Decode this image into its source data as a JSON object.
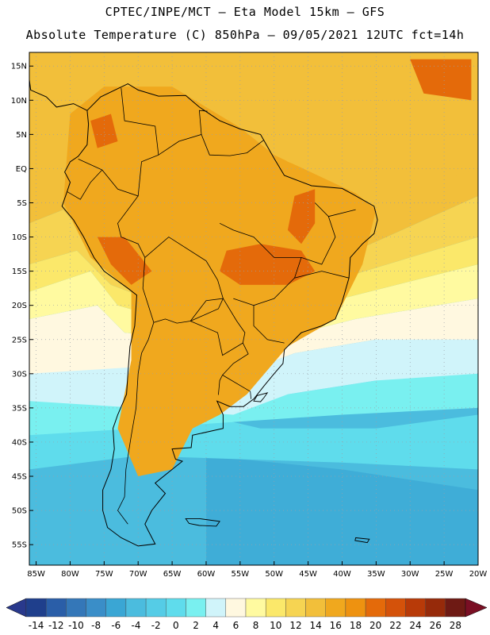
{
  "header": {
    "line1": "CPTEC/INPE/MCT –  Eta Model 15km – GFS",
    "line2": "Absolute Temperature (C) 850hPa – 09/05/2021 12UTC fct=14h"
  },
  "map": {
    "lon_range": [
      -86,
      -20
    ],
    "lat_range": [
      -58,
      17
    ],
    "lat_labels": [
      "15N",
      "10N",
      "5N",
      "EQ",
      "5S",
      "10S",
      "15S",
      "20S",
      "25S",
      "30S",
      "35S",
      "40S",
      "45S",
      "50S",
      "55S"
    ],
    "lat_values": [
      15,
      10,
      5,
      0,
      -5,
      -10,
      -15,
      -20,
      -25,
      -30,
      -35,
      -40,
      -45,
      -50,
      -55
    ],
    "lon_labels": [
      "85W",
      "80W",
      "75W",
      "70W",
      "65W",
      "60W",
      "55W",
      "50W",
      "45W",
      "40W",
      "35W",
      "30W",
      "25W",
      "20W"
    ],
    "lon_values": [
      -85,
      -80,
      -75,
      -70,
      -65,
      -60,
      -55,
      -50,
      -45,
      -40,
      -35,
      -30,
      -25,
      -20
    ]
  },
  "colorbar": {
    "labels": [
      "-14",
      "-12",
      "-10",
      "-8",
      "-6",
      "-4",
      "-2",
      "0",
      "2",
      "4",
      "6",
      "8",
      "10",
      "12",
      "14",
      "16",
      "18",
      "20",
      "22",
      "24",
      "26",
      "28"
    ],
    "colors": [
      "#1f3f8c",
      "#2a5ea8",
      "#3477b8",
      "#3a8ec8",
      "#3aa6d4",
      "#4bbcde",
      "#55cce6",
      "#5fdcec",
      "#79f0f0",
      "#d0f4fa",
      "#fff8e0",
      "#fffaa0",
      "#fbe86a",
      "#f6d452",
      "#f2bf3a",
      "#f0a81e",
      "#ee9210",
      "#e46a0a",
      "#d4520a",
      "#b83a08",
      "#962a0a",
      "#6e1a14"
    ],
    "under_color": "#29398c",
    "over_color": "#7a0f24"
  },
  "field_colors": {
    "land_base": "#f0a81e",
    "warm_core": "#e46a0a",
    "ocean_warm": "#f2bf3a",
    "ocean_mild": "#f6d452",
    "ocean_cool": "#fbe86a",
    "ocean_pale": "#fffaa0",
    "cream": "#fff8e0",
    "pale_cyan": "#d0f4fa",
    "cyan": "#79f0f0",
    "cyan2": "#5fdcec",
    "blue": "#4bbcde",
    "blue2": "#3aa6d4"
  }
}
